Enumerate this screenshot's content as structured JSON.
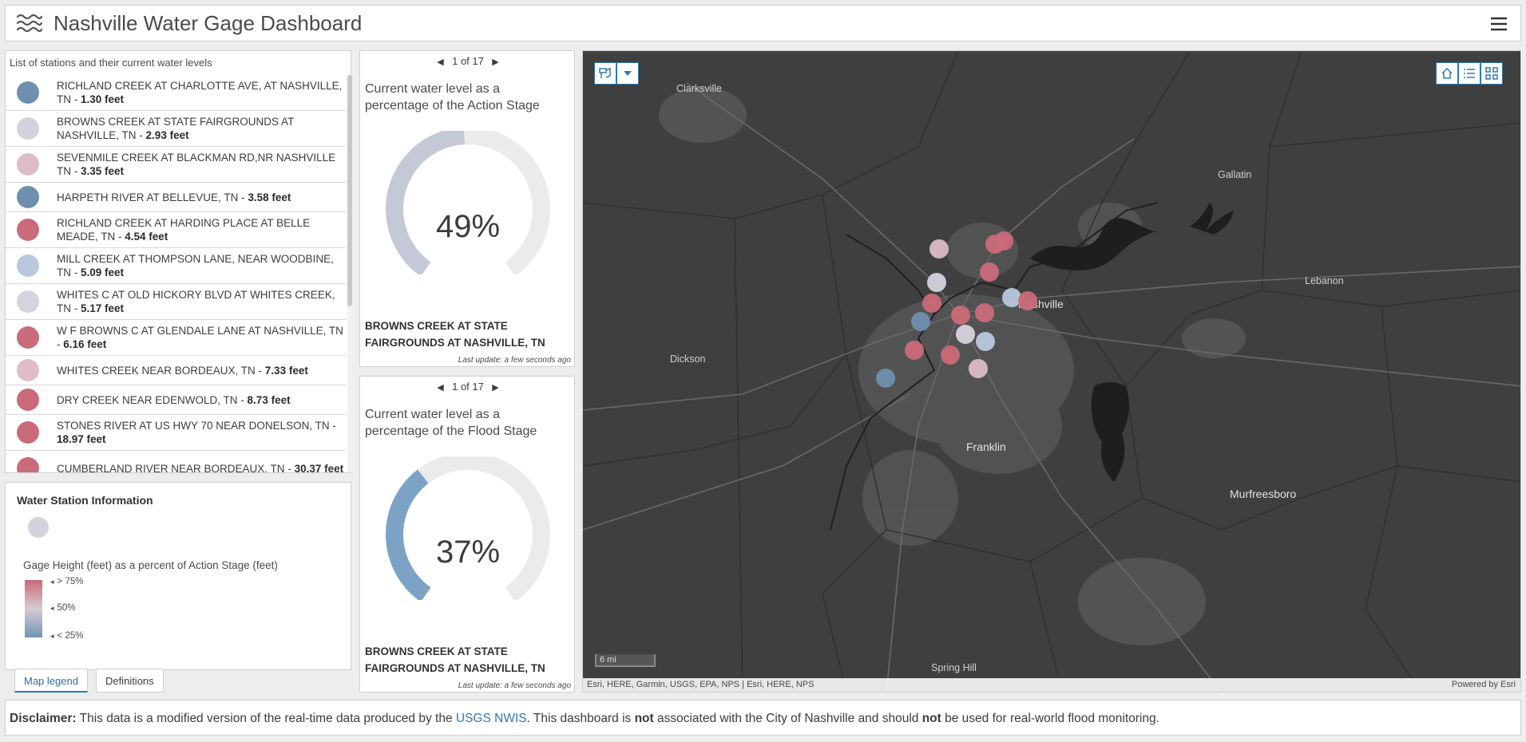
{
  "header": {
    "title": "Nashville Water Gage Dashboard"
  },
  "station_list": {
    "caption": "List of stations and their current water levels",
    "items": [
      {
        "name": "RICHLAND CREEK AT CHARLOTTE AVE, AT NASHVILLE, TN",
        "sep": " - ",
        "level": "1.30 feet",
        "color": "#6e8fae"
      },
      {
        "name": "BROWNS CREEK AT STATE FAIRGROUNDS AT NASHVILLE, TN",
        "sep": " - ",
        "level": "2.93 feet",
        "color": "#d3d3de"
      },
      {
        "name": "SEVENMILE CREEK AT BLACKMAN RD,NR NASHVILLE TN",
        "sep": " - ",
        "level": "3.35 feet",
        "color": "#dcbcc6"
      },
      {
        "name": "HARPETH RIVER AT BELLEVUE, TN",
        "sep": " - ",
        "level": "3.58 feet",
        "color": "#6e8fae"
      },
      {
        "name": "RICHLAND CREEK AT HARDING PLACE AT BELLE MEADE, TN",
        "sep": " - ",
        "level": "4.54 feet",
        "color": "#c96b78"
      },
      {
        "name": "MILL CREEK AT THOMPSON LANE, NEAR WOODBINE, TN",
        "sep": " - ",
        "level": "5.09 feet",
        "color": "#b9c8dc"
      },
      {
        "name": "WHITES C AT OLD HICKORY BLVD AT WHITES CREEK, TN",
        "sep": " - ",
        "level": "5.17 feet",
        "color": "#d6d2de"
      },
      {
        "name": "W F BROWNS C AT GLENDALE LANE AT NASHVILLE, TN",
        "sep": " - ",
        "level": "6.16 feet",
        "color": "#c96b78"
      },
      {
        "name": "WHITES CREEK NEAR BORDEAUX, TN",
        "sep": " - ",
        "level": "7.33 feet",
        "color": "#dfbcc6"
      },
      {
        "name": "DRY CREEK NEAR EDENWOLD, TN",
        "sep": " - ",
        "level": "8.73 feet",
        "color": "#c96b78"
      },
      {
        "name": "STONES RIVER AT US HWY 70 NEAR DONELSON, TN",
        "sep": " - ",
        "level": "18.97 feet",
        "color": "#c96b78"
      },
      {
        "name": "CUMBERLAND RIVER NEAR BORDEAUX, TN",
        "sep": " - ",
        "level": "30.37 feet",
        "color": "#c96b78"
      }
    ]
  },
  "legend": {
    "title": "Water Station Information",
    "subtitle": "Gage Height (feet) as a percent of Action Stage (feet)",
    "high": "> 75%",
    "mid": "50%",
    "low": "< 25%",
    "tabs": [
      "Map legend",
      "Definitions"
    ]
  },
  "gauge_action": {
    "pager": "1 of 17",
    "description": "Current water level as a percentage of the Action Stage",
    "value_text": "49%",
    "value_fraction": 0.49,
    "color": "#c4c9d7",
    "station": "BROWNS CREEK AT STATE FAIRGROUNDS AT NASHVILLE, TN",
    "updated": "Last update: a few seconds ago"
  },
  "gauge_flood": {
    "pager": "1 of 17",
    "description": "Current water level as a percentage of the Flood Stage",
    "value_text": "37%",
    "value_fraction": 0.37,
    "color": "#7ca2c6",
    "station": "BROWNS CREEK AT STATE FAIRGROUNDS AT NASHVILLE, TN",
    "updated": "Last update: a few seconds ago"
  },
  "map": {
    "labels": {
      "clarksville": "Clarksville",
      "gallatin": "Gallatin",
      "lebanon": "Lebanon",
      "nashville": "Nashville",
      "dickson": "Dickson",
      "franklin": "Franklin",
      "murfreesboro": "Murfreesboro",
      "spring_hill": "Spring Hill"
    },
    "scale": "6 mi",
    "attribution": "Esri, HERE, Garmin, USGS, EPA, NPS | Esri, HERE, NPS",
    "powered": "Powered by Esri"
  },
  "disclaimer": {
    "label": "Disclaimer:",
    "part1": " This data is a modified version of the real-time data produced by the ",
    "link": "USGS NWIS",
    "part2": ". This dashboard is ",
    "not1": "not",
    "part3": " associated with the City of Nashville and should ",
    "not2": "not",
    "part4": " be used for real-world flood monitoring."
  }
}
